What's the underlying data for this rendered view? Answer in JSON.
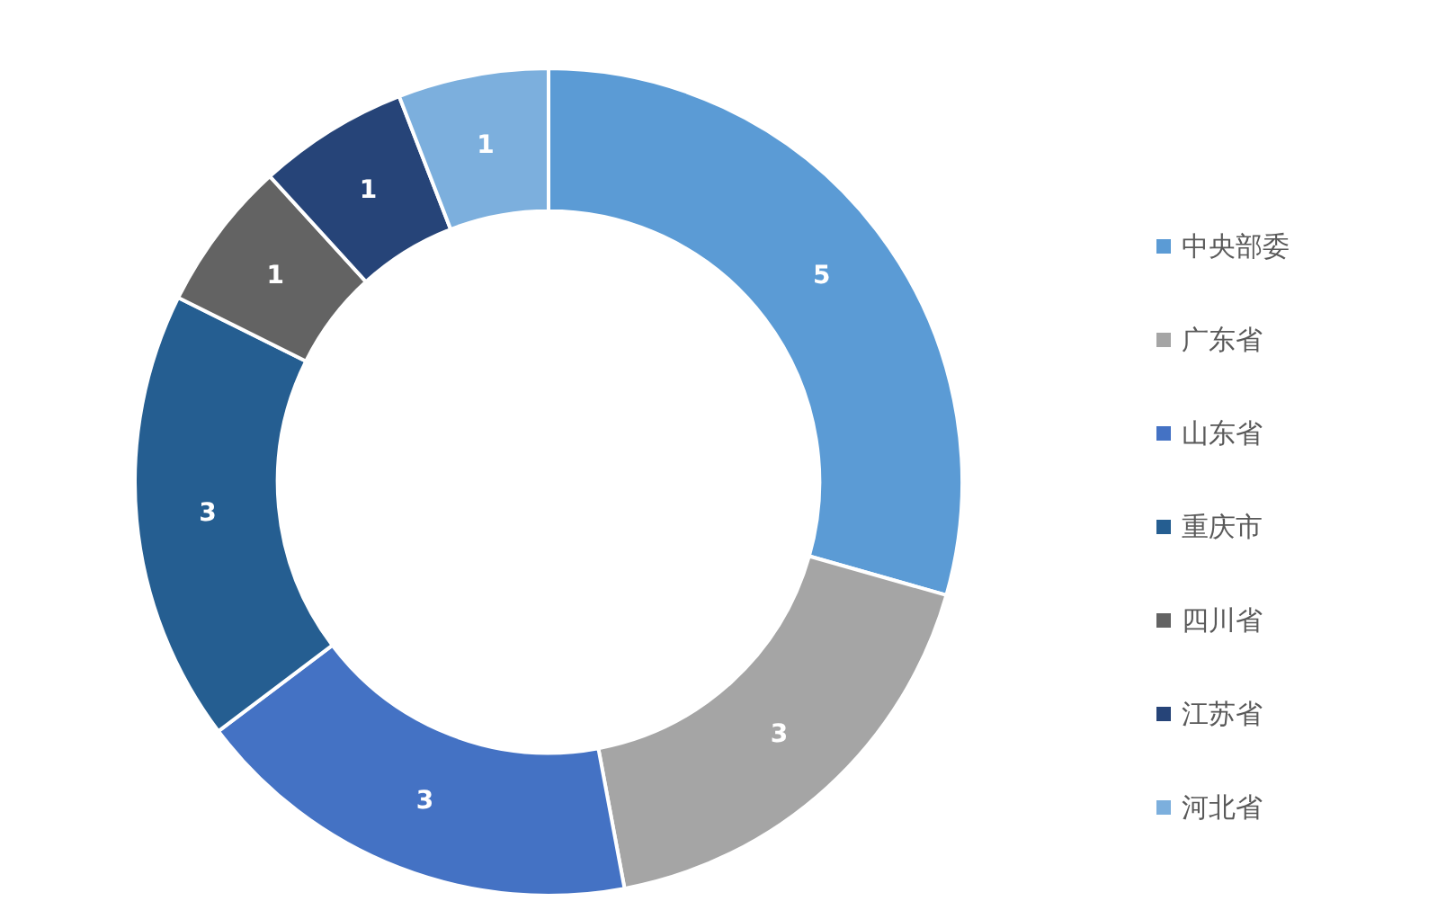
{
  "chart_data": {
    "type": "donut",
    "categories": [
      "中央部委",
      "广东省",
      "山东省",
      "重庆市",
      "四川省",
      "江苏省",
      "河北省"
    ],
    "values": [
      5,
      3,
      3,
      3,
      1,
      1,
      1
    ],
    "colors": [
      "#5b9bd5",
      "#a5a5a5",
      "#4472c4",
      "#255e91",
      "#636363",
      "#264478",
      "#7cafdd"
    ],
    "data_labels": true,
    "legend": "right"
  }
}
